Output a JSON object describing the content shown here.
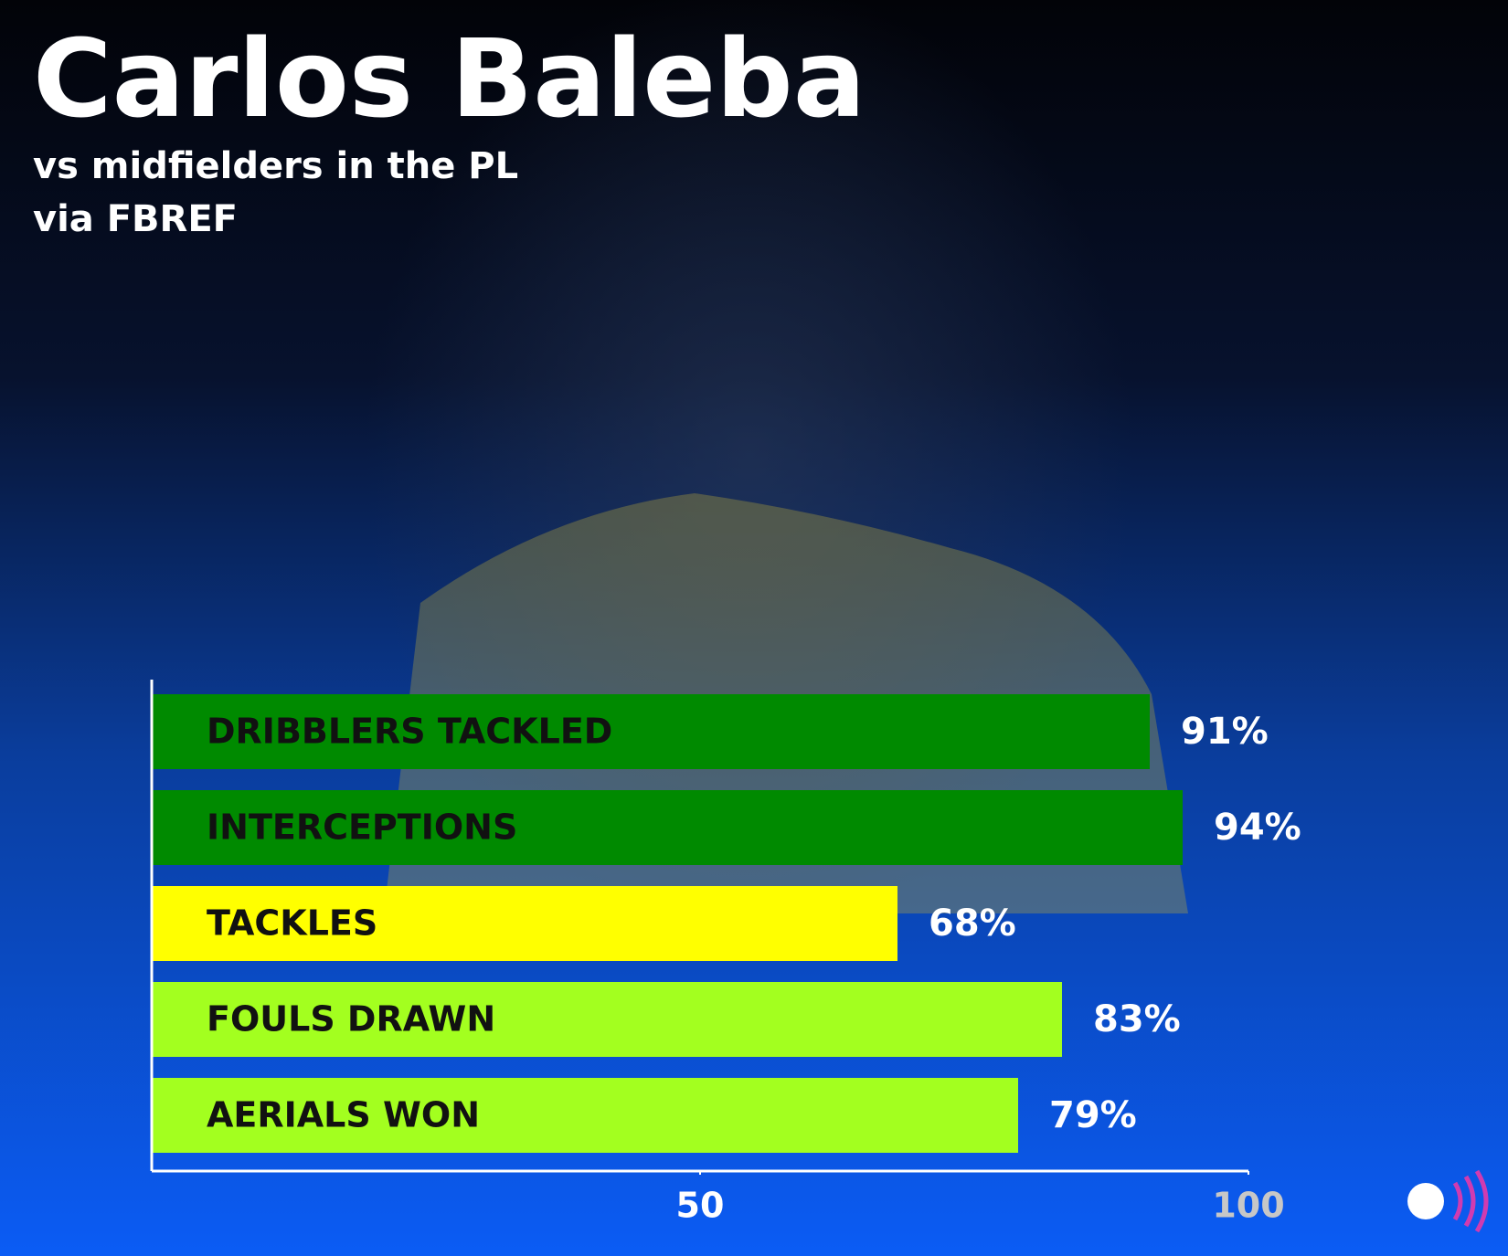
{
  "chart_data": {
    "type": "hbar",
    "title": "Carlos Baleba",
    "subtitle": [
      "vs midfielders in the PL",
      "via FBREF"
    ],
    "categories": [
      "DRIBBLERS TACKLED",
      "INTERCEPTIONS",
      "TACKLES",
      "FOULS DRAWN",
      "AERIALS WON"
    ],
    "values": [
      91,
      94,
      68,
      83,
      79
    ],
    "value_labels": [
      "91%",
      "94%",
      "68%",
      "83%",
      "79%"
    ],
    "colors": [
      "#008a00",
      "#008a00",
      "#ffff00",
      "#a3ff1f",
      "#a3ff1f"
    ],
    "xlim": [
      0,
      100
    ],
    "xticks": [
      50,
      100
    ]
  }
}
